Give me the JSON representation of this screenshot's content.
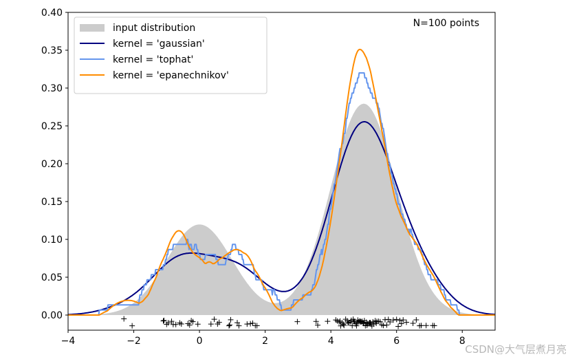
{
  "chart_data": {
    "type": "area",
    "title": "",
    "annotation": "N=100 points",
    "xlim": [
      -4,
      9
    ],
    "ylim": [
      -0.02,
      0.4
    ],
    "xticks": [
      "−4",
      "−2",
      "0",
      "2",
      "4",
      "6",
      "8"
    ],
    "xtick_values": [
      -4,
      -2,
      0,
      2,
      4,
      6,
      8
    ],
    "yticks": [
      "0.00",
      "0.05",
      "0.10",
      "0.15",
      "0.20",
      "0.25",
      "0.30",
      "0.35",
      "0.40"
    ],
    "ytick_values": [
      0,
      0.05,
      0.1,
      0.15,
      0.2,
      0.25,
      0.3,
      0.35,
      0.4
    ],
    "legend_position": "upper-left",
    "input_distribution": {
      "components": [
        {
          "weight": 0.3,
          "mean": 0,
          "std": 1
        },
        {
          "weight": 0.7,
          "mean": 5,
          "std": 1
        }
      ]
    },
    "bandwidth": 0.75,
    "series": [
      {
        "name": "input distribution",
        "kind": "fill",
        "color": "#cccccc"
      },
      {
        "name": "kernel = 'gaussian'",
        "kernel": "gaussian",
        "color": "#000080"
      },
      {
        "name": "kernel = 'tophat'",
        "kernel": "tophat",
        "color": "#6495ed"
      },
      {
        "name": "kernel = 'epanechnikov'",
        "kernel": "epanechnikov",
        "color": "#ff8c00"
      }
    ],
    "samples": [
      -2.3,
      -2.05,
      -1.1,
      -1.08,
      -1.0,
      -0.95,
      -0.85,
      -0.8,
      -0.72,
      -0.6,
      -0.55,
      -0.35,
      -0.3,
      -0.25,
      -0.2,
      -0.05,
      0.35,
      0.45,
      0.55,
      0.6,
      0.9,
      0.92,
      0.95,
      1.15,
      1.2,
      1.45,
      1.55,
      1.62,
      1.7,
      1.75,
      2.98,
      3.55,
      3.6,
      3.9,
      4.15,
      4.2,
      4.25,
      4.28,
      4.3,
      4.35,
      4.38,
      4.4,
      4.45,
      4.5,
      4.52,
      4.55,
      4.6,
      4.62,
      4.65,
      4.68,
      4.7,
      4.72,
      4.75,
      4.78,
      4.8,
      4.82,
      4.85,
      4.88,
      4.9,
      4.92,
      4.95,
      4.98,
      5.0,
      5.02,
      5.05,
      5.08,
      5.1,
      5.12,
      5.15,
      5.18,
      5.2,
      5.22,
      5.25,
      5.28,
      5.3,
      5.35,
      5.38,
      5.4,
      5.45,
      5.5,
      5.55,
      5.6,
      5.65,
      5.7,
      5.75,
      5.8,
      5.9,
      6.0,
      6.05,
      6.1,
      6.15,
      6.2,
      6.3,
      6.5,
      6.6,
      6.7,
      6.75,
      6.9,
      7.1,
      7.15
    ],
    "sample_marker": "+"
  },
  "watermark": "CSDN@大气层煮月亮"
}
